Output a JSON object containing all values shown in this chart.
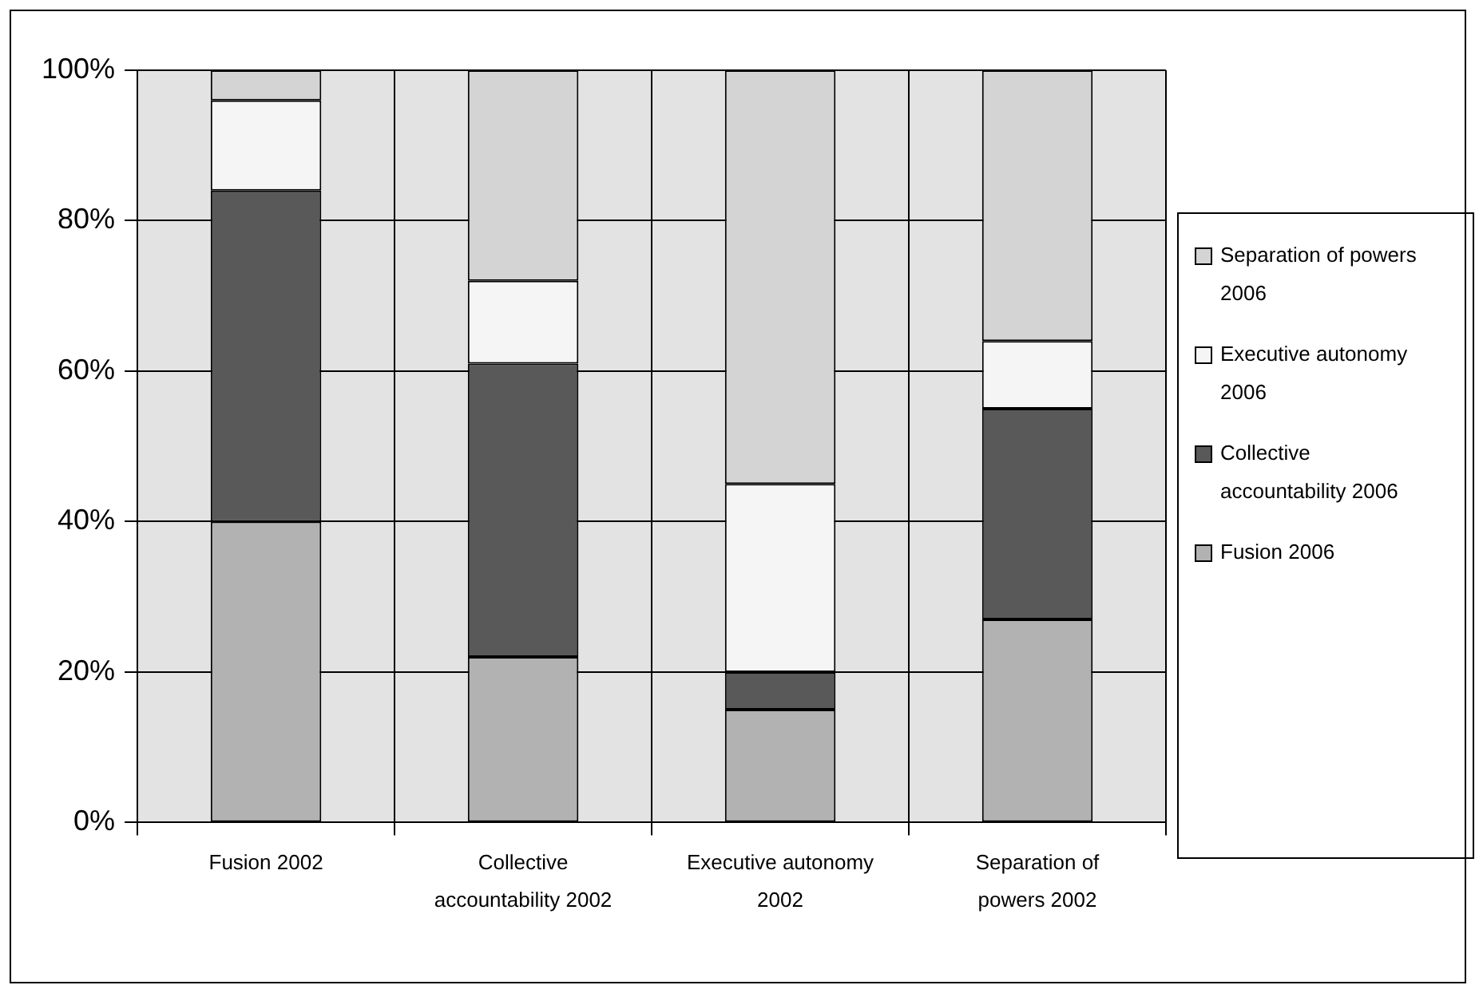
{
  "chart_data": {
    "type": "bar",
    "stacked": true,
    "categories": [
      "Fusion 2002",
      "Collective accountability 2002",
      "Executive autonomy 2002",
      "Separation of powers 2002"
    ],
    "series": [
      {
        "name": "Fusion 2006",
        "color": "#b2b2b2",
        "values": [
          40,
          22,
          15,
          27
        ]
      },
      {
        "name": "Collective accountability 2006",
        "color": "#595959",
        "values": [
          44,
          39,
          5,
          28
        ]
      },
      {
        "name": "Executive autonomy 2006",
        "color": "#f5f5f5",
        "values": [
          12,
          11,
          25,
          9
        ]
      },
      {
        "name": "Separation of powers 2006",
        "color": "#d4d4d4",
        "values": [
          4,
          28,
          55,
          36
        ]
      }
    ],
    "ylim": [
      0,
      100
    ],
    "yticks": [
      {
        "value": 0,
        "label": "0%"
      },
      {
        "value": 20,
        "label": "20%"
      },
      {
        "value": 40,
        "label": "40%"
      },
      {
        "value": 60,
        "label": "60%"
      },
      {
        "value": 80,
        "label": "80%"
      },
      {
        "value": 100,
        "label": "100%"
      }
    ],
    "grid": true,
    "legend": "right"
  }
}
